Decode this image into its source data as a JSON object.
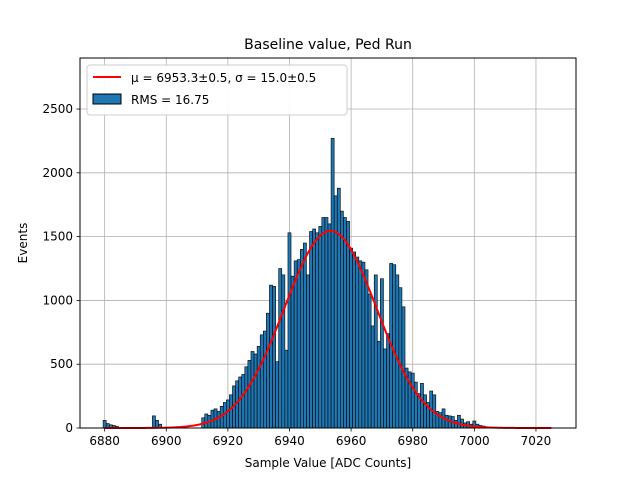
{
  "chart_data": {
    "type": "bar",
    "title": "Baseline value, Ped Run",
    "xlabel": "Sample Value [ADC Counts]",
    "ylabel": "Events",
    "xlim": [
      6872,
      7033
    ],
    "ylim": [
      0,
      2900
    ],
    "xticks": [
      6880,
      6900,
      6920,
      6940,
      6960,
      6980,
      7000,
      7020
    ],
    "yticks": [
      0,
      500,
      1000,
      1500,
      2000,
      2500
    ],
    "grid": true,
    "legend_position": "top-left",
    "bin_width": 1,
    "histogram": {
      "name": "RMS = 16.75",
      "color": "#1f77b4",
      "edgecolor": "#000000",
      "x": [
        6880,
        6881,
        6882,
        6883,
        6884,
        6896,
        6897,
        6898,
        6912,
        6913,
        6914,
        6915,
        6916,
        6917,
        6918,
        6919,
        6920,
        6921,
        6922,
        6923,
        6924,
        6925,
        6926,
        6927,
        6928,
        6929,
        6930,
        6931,
        6932,
        6933,
        6934,
        6935,
        6936,
        6937,
        6938,
        6939,
        6940,
        6941,
        6942,
        6943,
        6944,
        6945,
        6946,
        6947,
        6948,
        6949,
        6950,
        6951,
        6952,
        6953,
        6954,
        6955,
        6956,
        6957,
        6958,
        6959,
        6960,
        6961,
        6962,
        6963,
        6964,
        6965,
        6966,
        6967,
        6968,
        6969,
        6970,
        6971,
        6972,
        6973,
        6974,
        6975,
        6976,
        6977,
        6978,
        6979,
        6980,
        6981,
        6982,
        6983,
        6984,
        6985,
        6986,
        6987,
        6988,
        6989,
        6990,
        6991,
        6992,
        6993,
        6994,
        6995,
        6996,
        6997,
        6998,
        6999,
        7000,
        7001,
        7002,
        7003
      ],
      "values": [
        60,
        35,
        25,
        20,
        12,
        95,
        60,
        30,
        80,
        110,
        100,
        140,
        150,
        130,
        170,
        200,
        220,
        260,
        330,
        370,
        400,
        420,
        480,
        530,
        600,
        580,
        640,
        730,
        760,
        900,
        1120,
        1110,
        520,
        1250,
        1200,
        610,
        1530,
        1190,
        1310,
        1320,
        1400,
        1450,
        1200,
        1540,
        1560,
        1530,
        1580,
        1650,
        1650,
        1600,
        2270,
        1820,
        1880,
        1700,
        1650,
        1620,
        1410,
        1380,
        1340,
        1310,
        1300,
        1240,
        1050,
        800,
        1200,
        680,
        1170,
        620,
        740,
        1290,
        1280,
        1200,
        1100,
        950,
        470,
        440,
        430,
        360,
        270,
        350,
        260,
        200,
        290,
        260,
        130,
        120,
        150,
        100,
        95,
        90,
        60,
        100,
        70,
        40,
        50,
        30,
        55,
        30,
        20,
        15
      ]
    },
    "fit": {
      "name": "μ = 6953.3±0.5, σ = 15.0±0.5",
      "color": "#ff0000",
      "mu": 6953.3,
      "sigma": 15.0,
      "amplitude": 1545,
      "x_range": [
        6880,
        7025
      ]
    }
  }
}
